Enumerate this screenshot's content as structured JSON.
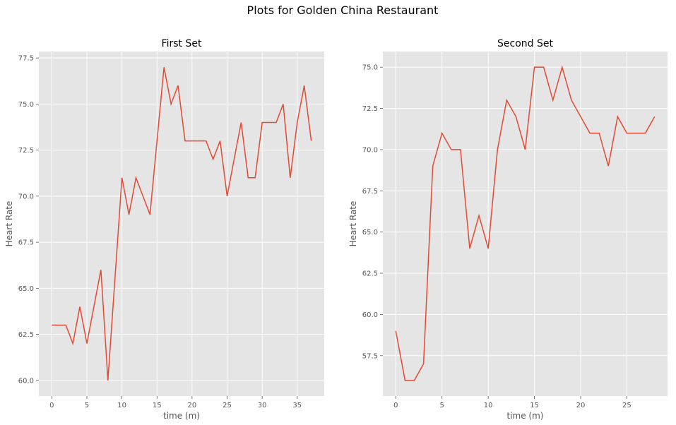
{
  "figure": {
    "suptitle": "Plots for Golden China Restaurant",
    "colors": {
      "panel_bg": "#e5e5e5",
      "grid": "#ffffff",
      "line": "#e24a33",
      "text": "#555555"
    }
  },
  "chart_data": [
    {
      "type": "line",
      "title": "First Set",
      "xlabel": "time (m)",
      "ylabel": "Heart Rate",
      "xlim": [
        -1.85,
        38.85
      ],
      "ylim": [
        59.15,
        77.85
      ],
      "xticks": [
        0,
        5,
        10,
        15,
        20,
        25,
        30,
        35
      ],
      "yticks": [
        60.0,
        62.5,
        65.0,
        67.5,
        70.0,
        72.5,
        75.0,
        77.5
      ],
      "grid": true,
      "series": [
        {
          "x": [
            0,
            1,
            2,
            3,
            4,
            5,
            6,
            7,
            8,
            9,
            10,
            11,
            12,
            13,
            14,
            15,
            16,
            17,
            18,
            19,
            20,
            21,
            22,
            23,
            24,
            25,
            26,
            27,
            28,
            29,
            30,
            31,
            32,
            33,
            34,
            35,
            36,
            37
          ],
          "values": [
            63,
            63,
            63,
            62,
            64,
            62,
            64,
            66,
            60,
            65.5,
            71,
            69,
            71,
            70,
            69,
            73,
            77,
            75,
            76,
            73,
            73,
            73,
            73,
            72,
            73,
            70,
            72,
            74,
            71,
            71,
            74,
            74,
            74,
            75,
            71,
            74,
            76,
            73
          ]
        }
      ]
    },
    {
      "type": "line",
      "title": "Second Set",
      "xlabel": "time (m)",
      "ylabel": "Heart Rate",
      "xlim": [
        -1.4,
        29.4
      ],
      "ylim": [
        55.05,
        75.95
      ],
      "xticks": [
        0,
        5,
        10,
        15,
        20,
        25
      ],
      "yticks": [
        57.5,
        60.0,
        62.5,
        65.0,
        67.5,
        70.0,
        72.5,
        75.0
      ],
      "grid": true,
      "series": [
        {
          "x": [
            0,
            1,
            2,
            3,
            4,
            5,
            6,
            7,
            8,
            9,
            10,
            11,
            12,
            13,
            14,
            15,
            16,
            17,
            18,
            19,
            20,
            21,
            22,
            23,
            24,
            25,
            26,
            27,
            28
          ],
          "values": [
            59,
            56,
            56,
            57,
            69,
            71,
            70,
            70,
            64,
            66,
            64,
            70,
            73,
            72,
            70,
            75,
            75,
            73,
            75,
            73,
            72,
            71,
            71,
            69,
            72,
            71,
            71,
            71,
            72
          ]
        }
      ]
    }
  ]
}
